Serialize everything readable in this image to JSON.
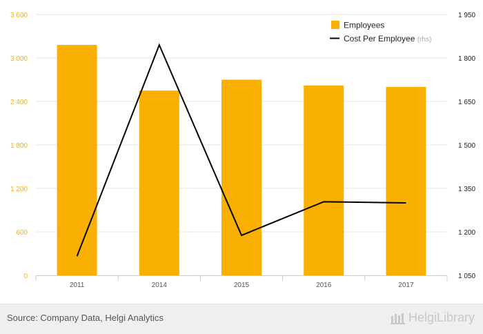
{
  "chart_data": {
    "type": "bar",
    "categories": [
      "2011",
      "2014",
      "2015",
      "2016",
      "2017"
    ],
    "series": [
      {
        "name": "Employees",
        "type": "bar",
        "axis": "left",
        "values": [
          3180,
          2550,
          2700,
          2620,
          2600
        ]
      },
      {
        "name": "Cost Per Employee",
        "type": "line",
        "axis": "right",
        "values": [
          1116,
          1845,
          1188,
          1304,
          1300
        ]
      }
    ],
    "ylim_left": [
      0,
      3600
    ],
    "yticks_left": [
      "0",
      "600",
      "1 200",
      "1 800",
      "2 400",
      "3 000",
      "3 600"
    ],
    "ylim_right": [
      1050,
      1950
    ],
    "yticks_right": [
      "1 050",
      "1 200",
      "1 350",
      "1 500",
      "1 650",
      "1 800",
      "1 950"
    ],
    "legend": {
      "placement": "top-right",
      "entries": [
        {
          "label": "Employees",
          "suffix": ""
        },
        {
          "label": "Cost Per Employee",
          "suffix": "(rhs)"
        }
      ]
    },
    "grid": "horizontal",
    "colors": {
      "bar": "#F9B000",
      "line": "#000000",
      "left_tick": "#F9B000",
      "right_tick": "#222222",
      "grid": "#e6e6e6"
    }
  },
  "footer": {
    "source": "Source: Company Data, Helgi Analytics",
    "brand": "HelgiLibrary"
  }
}
